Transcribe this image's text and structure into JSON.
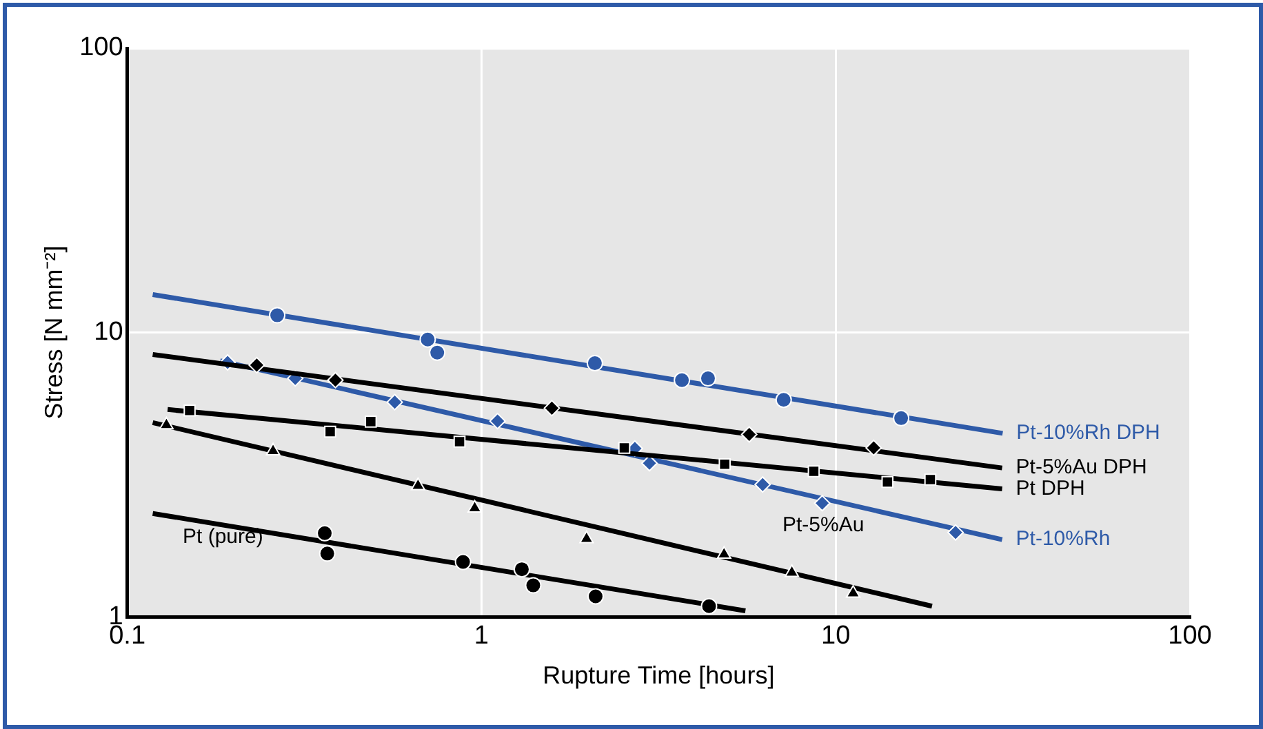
{
  "chart_data": {
    "type": "scatter",
    "xlabel": "Rupture Time [hours]",
    "ylabel": "Stress [N mm⁻²]",
    "log": "xy",
    "xlim": [
      0.1,
      100
    ],
    "xticks": [
      0.1,
      1,
      10,
      100
    ],
    "ylim": [
      1,
      100
    ],
    "yticks": [
      1,
      10,
      100
    ],
    "grid": true,
    "legend": false,
    "series": [
      {
        "marker": "circle",
        "color": "#2e5aa8",
        "x": [
          0.265,
          0.705,
          0.75,
          2.09,
          3.68,
          4.36,
          7.13,
          15.3
        ],
        "values": [
          11.5,
          9.45,
          8.5,
          7.8,
          6.8,
          6.9,
          5.8,
          5.0
        ]
      },
      {
        "type": "line",
        "name": "Pt-10%Rh DPH",
        "color": "#2e5aa8",
        "x": [
          0.118,
          29.6
        ],
        "values": [
          13.6,
          4.42
        ]
      },
      {
        "marker": "diamond",
        "color": "#000000",
        "x": [
          0.232,
          0.387,
          1.58,
          5.7,
          12.8
        ],
        "values": [
          7.68,
          6.8,
          5.42,
          4.38,
          3.93
        ]
      },
      {
        "type": "line",
        "name": "Pt-5%Au DPH",
        "color": "#000000",
        "x": [
          0.118,
          29.5
        ],
        "values": [
          8.37,
          3.34
        ]
      },
      {
        "marker": "square",
        "color": "#000000",
        "x": [
          0.15,
          0.374,
          0.487,
          0.867,
          2.53,
          4.86,
          8.67,
          14.0,
          18.5
        ],
        "values": [
          5.32,
          4.48,
          4.86,
          4.13,
          3.93,
          3.44,
          3.25,
          2.98,
          3.04
        ]
      },
      {
        "type": "line",
        "name": "Pt DPH",
        "color": "#000000",
        "x": [
          0.13,
          29.5
        ],
        "values": [
          5.36,
          2.82
        ]
      },
      {
        "marker": "diamond",
        "color": "#2e5aa8",
        "x": [
          0.192,
          0.298,
          0.569,
          1.11,
          2.71,
          2.98,
          6.22,
          9.16,
          21.8
        ],
        "values": [
          7.85,
          6.9,
          5.69,
          4.88,
          3.91,
          3.47,
          2.92,
          2.51,
          1.98
        ]
      },
      {
        "type": "line",
        "name": "Pt-10%Rh",
        "color": "#2e5aa8",
        "x": [
          0.183,
          29.5
        ],
        "values": [
          7.95,
          1.87
        ]
      },
      {
        "marker": "triangle",
        "color": "#000000",
        "x": [
          0.129,
          0.258,
          0.662,
          0.957,
          1.98,
          4.84,
          7.52,
          11.2
        ],
        "values": [
          4.73,
          3.83,
          2.89,
          2.41,
          1.88,
          1.66,
          1.43,
          1.21
        ]
      },
      {
        "type": "line",
        "color": "#000000",
        "x": [
          0.118,
          18.7
        ],
        "values": [
          4.82,
          1.09
        ]
      },
      {
        "marker": "circle",
        "color": "#000000",
        "x": [
          0.361,
          0.367,
          0.887,
          1.3,
          1.4,
          2.1,
          4.39
        ],
        "values": [
          1.97,
          1.67,
          1.56,
          1.47,
          1.29,
          1.18,
          1.09
        ]
      },
      {
        "type": "line",
        "color": "#000000",
        "x": [
          0.118,
          5.56
        ],
        "values": [
          2.31,
          1.05
        ]
      }
    ],
    "annotations": [
      "Pt-5%Au",
      "Pt (pure)"
    ]
  }
}
